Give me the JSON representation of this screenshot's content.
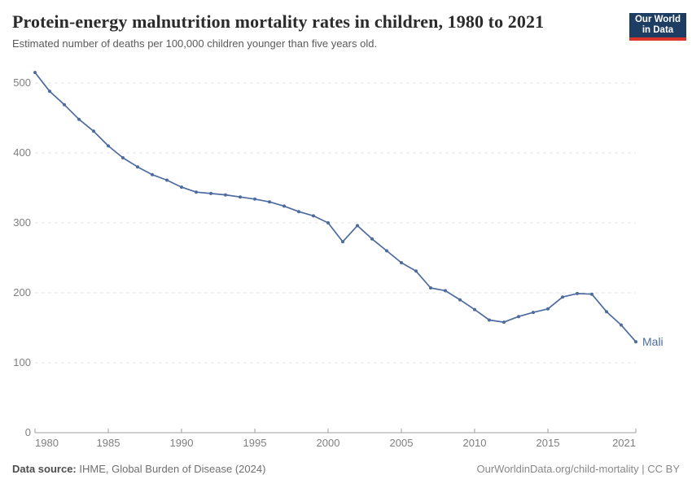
{
  "header": {
    "title": "Protein-energy malnutrition mortality rates in children, 1980 to 2021",
    "subtitle": "Estimated number of deaths per 100,000 children younger than five years old."
  },
  "logo": {
    "line1": "Our World",
    "line2": "in Data",
    "bg_color": "#1d3d63",
    "accent_color": "#dc352c"
  },
  "chart_data": {
    "type": "line",
    "title": "Protein-energy malnutrition mortality rates in children, 1980 to 2021",
    "xlabel": "",
    "ylabel": "Estimated deaths per 100,000 children younger than five",
    "x": [
      1980,
      1981,
      1982,
      1983,
      1984,
      1985,
      1986,
      1987,
      1988,
      1989,
      1990,
      1991,
      1992,
      1993,
      1994,
      1995,
      1996,
      1997,
      1998,
      1999,
      2000,
      2001,
      2002,
      2003,
      2004,
      2005,
      2006,
      2007,
      2008,
      2009,
      2010,
      2011,
      2012,
      2013,
      2014,
      2015,
      2016,
      2017,
      2018,
      2019,
      2020,
      2021
    ],
    "series": [
      {
        "name": "Mali",
        "color": "#4c6ba0",
        "values": [
          515,
          488,
          469,
          448,
          431,
          410,
          393,
          380,
          369,
          361,
          351,
          344,
          342,
          340,
          337,
          334,
          330,
          324,
          316,
          310,
          300,
          273,
          296,
          277,
          260,
          243,
          231,
          207,
          203,
          190,
          176,
          161,
          158,
          166,
          172,
          177,
          194,
          199,
          198,
          173,
          154,
          130
        ]
      }
    ],
    "x_ticks": [
      1980,
      1985,
      1990,
      1995,
      2000,
      2005,
      2010,
      2015,
      2021
    ],
    "y_ticks": [
      0,
      100,
      200,
      300,
      400,
      500
    ],
    "xlim": [
      1980,
      2021
    ],
    "ylim": [
      0,
      540
    ],
    "grid": "horizontal-dashed",
    "legend_position": "end-of-line-label"
  },
  "colors": {
    "line": "#4c6ba0",
    "grid": "#e3e3e3",
    "axis": "#9e9e9e",
    "axis_text": "#7f7f7f"
  },
  "footer": {
    "source_label": "Data source:",
    "source_text": " IHME, Global Burden of Disease (2024)",
    "credit": "OurWorldinData.org/child-mortality | CC BY"
  }
}
